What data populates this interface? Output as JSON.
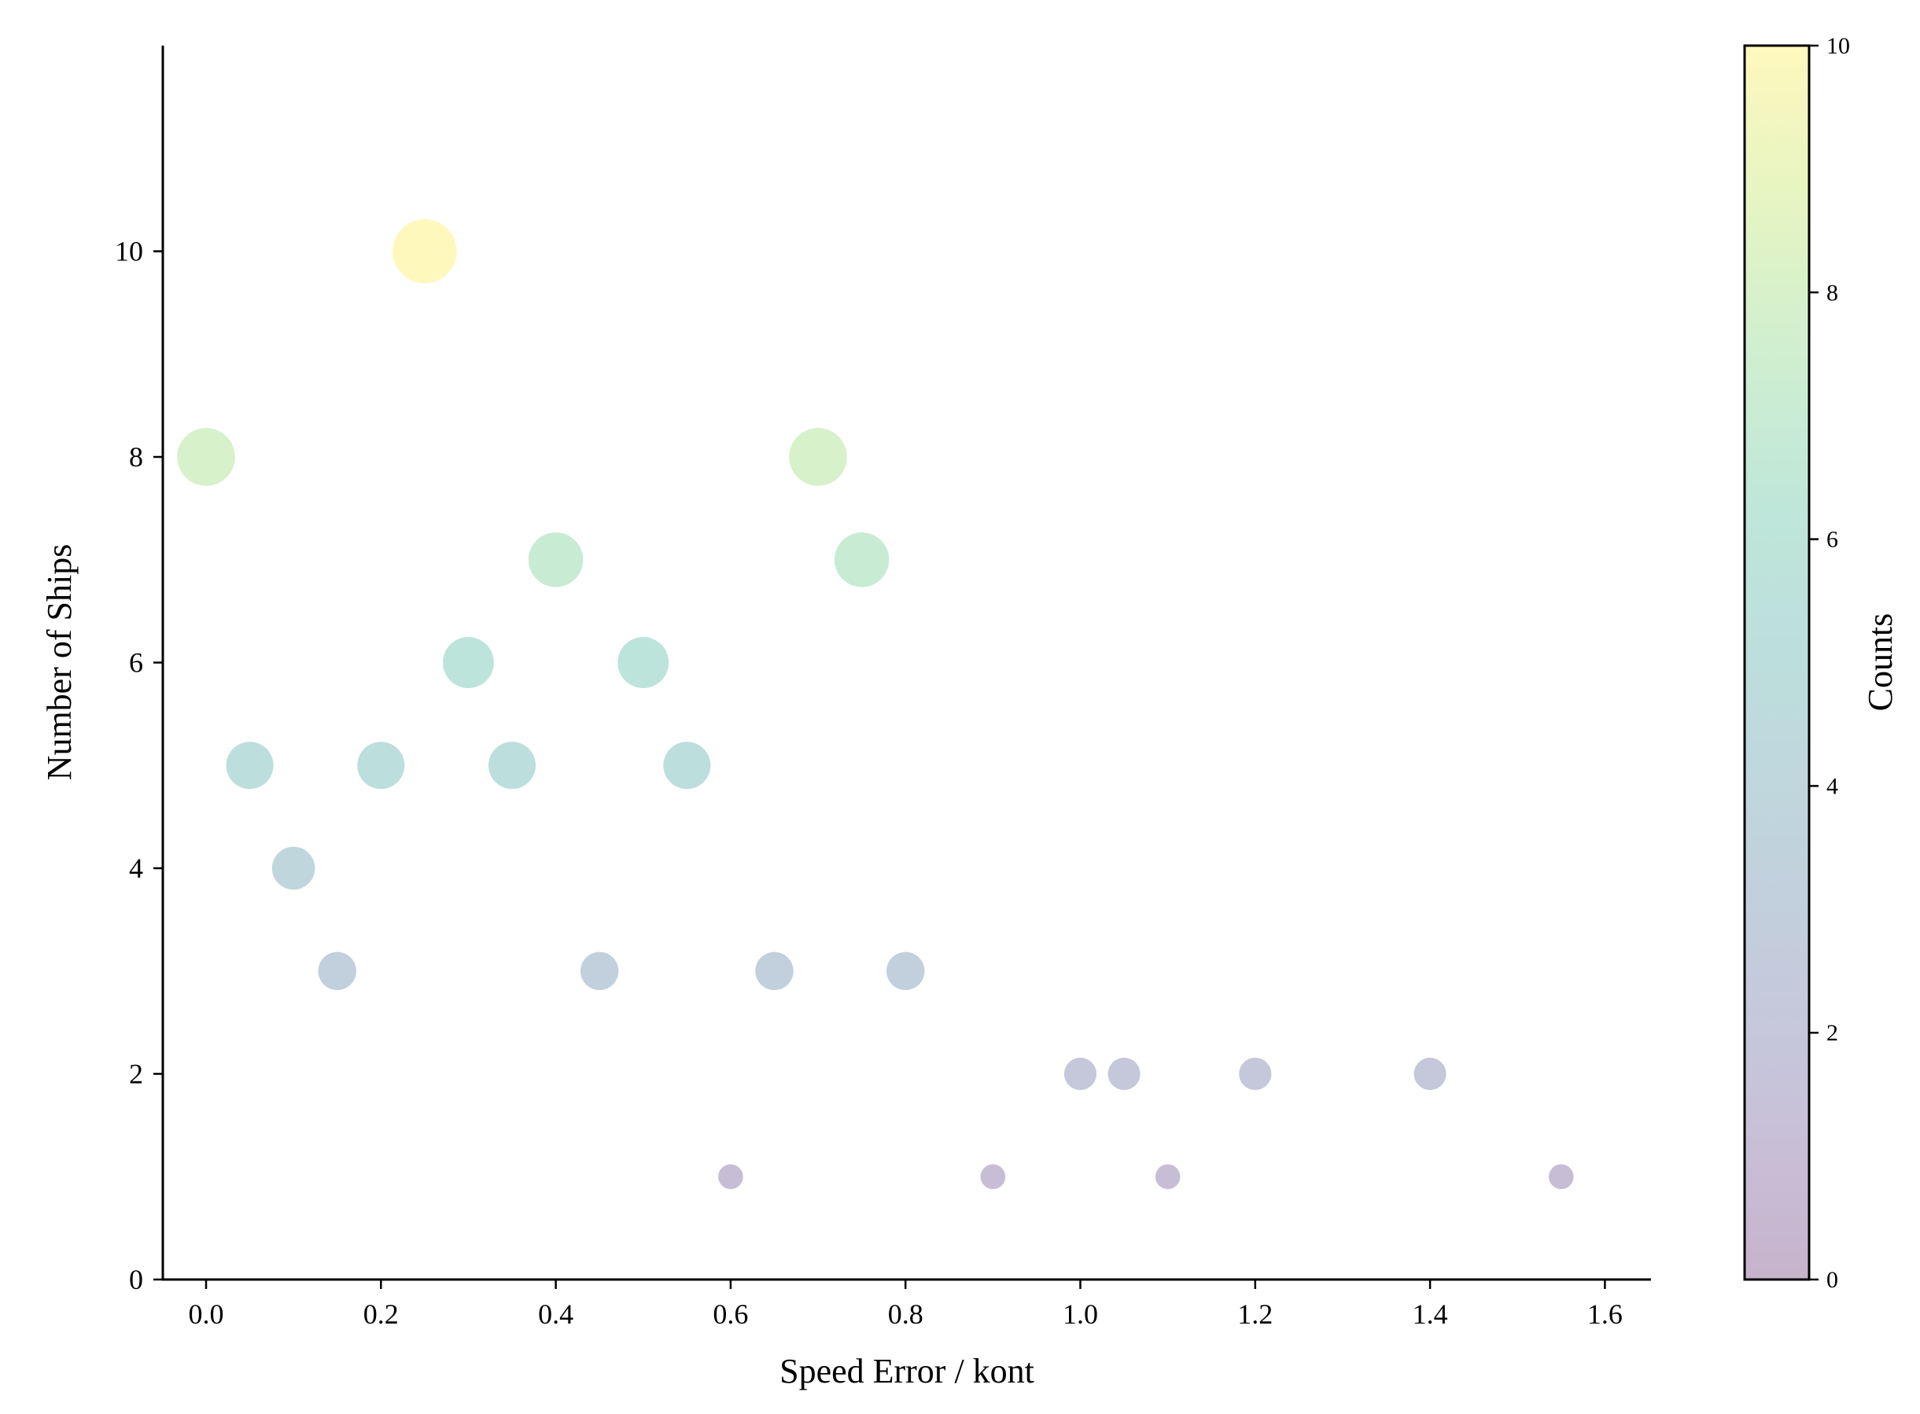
{
  "chart_data": {
    "type": "scatter",
    "xlabel": "Speed Error / kont",
    "ylabel": "Number of Ships",
    "xlim": [
      -0.05,
      1.65
    ],
    "ylim": [
      0,
      12
    ],
    "xticks": [
      0.0,
      0.2,
      0.4,
      0.6,
      0.8,
      1.0,
      1.2,
      1.4,
      1.6
    ],
    "xtick_labels": [
      "0.0",
      "0.2",
      "0.4",
      "0.6",
      "0.8",
      "1.0",
      "1.2",
      "1.4",
      "1.6"
    ],
    "yticks": [
      0,
      2,
      4,
      6,
      8,
      10
    ],
    "ytick_labels": [
      "0",
      "2",
      "4",
      "6",
      "8",
      "10"
    ],
    "grid": false,
    "colormap": "viridis",
    "marker_alpha": 0.3,
    "size_encodes": "Counts",
    "color_encodes": "Counts",
    "points": [
      {
        "x": 0.0,
        "y": 8
      },
      {
        "x": 0.05,
        "y": 5
      },
      {
        "x": 0.1,
        "y": 4
      },
      {
        "x": 0.15,
        "y": 3
      },
      {
        "x": 0.2,
        "y": 5
      },
      {
        "x": 0.25,
        "y": 10
      },
      {
        "x": 0.3,
        "y": 6
      },
      {
        "x": 0.35,
        "y": 5
      },
      {
        "x": 0.4,
        "y": 7
      },
      {
        "x": 0.45,
        "y": 3
      },
      {
        "x": 0.5,
        "y": 6
      },
      {
        "x": 0.55,
        "y": 5
      },
      {
        "x": 0.6,
        "y": 1
      },
      {
        "x": 0.65,
        "y": 3
      },
      {
        "x": 0.7,
        "y": 8
      },
      {
        "x": 0.75,
        "y": 7
      },
      {
        "x": 0.8,
        "y": 3
      },
      {
        "x": 0.9,
        "y": 1
      },
      {
        "x": 1.0,
        "y": 2
      },
      {
        "x": 1.05,
        "y": 2
      },
      {
        "x": 1.1,
        "y": 1
      },
      {
        "x": 1.2,
        "y": 2
      },
      {
        "x": 1.4,
        "y": 2
      },
      {
        "x": 1.55,
        "y": 1
      }
    ],
    "colorbar": {
      "label": "Counts",
      "range": [
        0,
        10
      ],
      "ticks": [
        0,
        2,
        4,
        6,
        8,
        10
      ],
      "tick_labels": [
        "0",
        "2",
        "4",
        "6",
        "8",
        "10"
      ]
    }
  }
}
